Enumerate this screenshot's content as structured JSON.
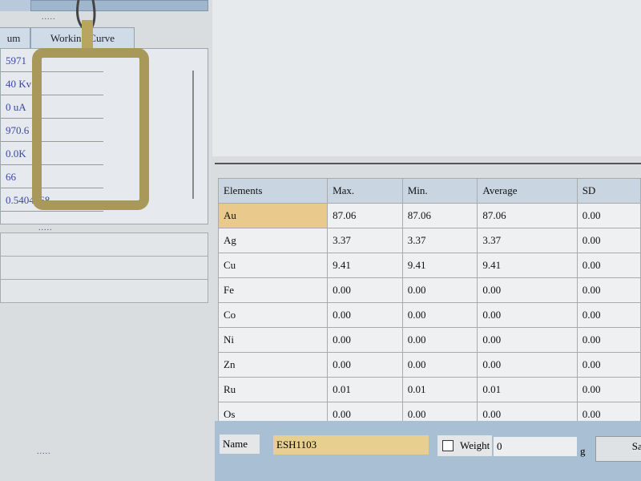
{
  "left": {
    "tabs": [
      "um",
      "Working Curve"
    ],
    "values": [
      "5971",
      "40 Kv",
      "0 uA",
      "970.6",
      "0.0K",
      "66",
      "0.5404868"
    ],
    "grip": "....."
  },
  "table": {
    "headers": [
      "Elements",
      "Max.",
      "Min.",
      "Average",
      "SD"
    ],
    "rows": [
      [
        "Au",
        "87.06",
        "87.06",
        "87.06",
        "0.00"
      ],
      [
        "Ag",
        "3.37",
        "3.37",
        "3.37",
        "0.00"
      ],
      [
        "Cu",
        "9.41",
        "9.41",
        "9.41",
        "0.00"
      ],
      [
        "Fe",
        "0.00",
        "0.00",
        "0.00",
        "0.00"
      ],
      [
        "Co",
        "0.00",
        "0.00",
        "0.00",
        "0.00"
      ],
      [
        "Ni",
        "0.00",
        "0.00",
        "0.00",
        "0.00"
      ],
      [
        "Zn",
        "0.00",
        "0.00",
        "0.00",
        "0.00"
      ],
      [
        "Ru",
        "0.01",
        "0.01",
        "0.01",
        "0.00"
      ],
      [
        "Os",
        "0.00",
        "0.00",
        "0.00",
        "0.00"
      ]
    ],
    "selected_color": "#e9c98c"
  },
  "bottom": {
    "name_label": "Name",
    "name_value": "ESH1103",
    "weight_label": "Weight",
    "weight_value": "0",
    "unit": "g",
    "save_label": "Save"
  }
}
